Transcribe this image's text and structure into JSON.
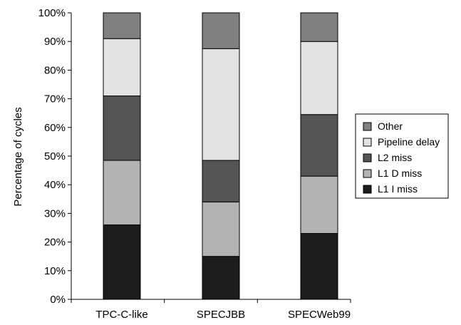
{
  "chart_data": {
    "type": "bar",
    "stacked": true,
    "title": "",
    "xlabel": "",
    "ylabel": "Percentage of cycles",
    "ylim": [
      0,
      100
    ],
    "yticks": [
      "0%",
      "10%",
      "20%",
      "30%",
      "40%",
      "50%",
      "60%",
      "70%",
      "80%",
      "90%",
      "100%"
    ],
    "categories": [
      "TPC-C-like",
      "SPECJBB",
      "SPECWeb99"
    ],
    "series": [
      {
        "name": "L1 I miss",
        "color": "#1c1c1c",
        "values": [
          26,
          15,
          23
        ]
      },
      {
        "name": "L1 D miss",
        "color": "#b3b3b3",
        "values": [
          22.5,
          19,
          20
        ]
      },
      {
        "name": "L2 miss",
        "color": "#555555",
        "values": [
          22.5,
          14.5,
          21.5
        ]
      },
      {
        "name": "Pipeline delay",
        "color": "#e3e3e3",
        "values": [
          20,
          39,
          25.5
        ]
      },
      {
        "name": "Other",
        "color": "#808080",
        "values": [
          9,
          12.5,
          10
        ]
      }
    ],
    "legend_order": [
      "Other",
      "Pipeline delay",
      "L2 miss",
      "L1 D miss",
      "L1 I miss"
    ],
    "legend_position": "right",
    "grid": false
  }
}
